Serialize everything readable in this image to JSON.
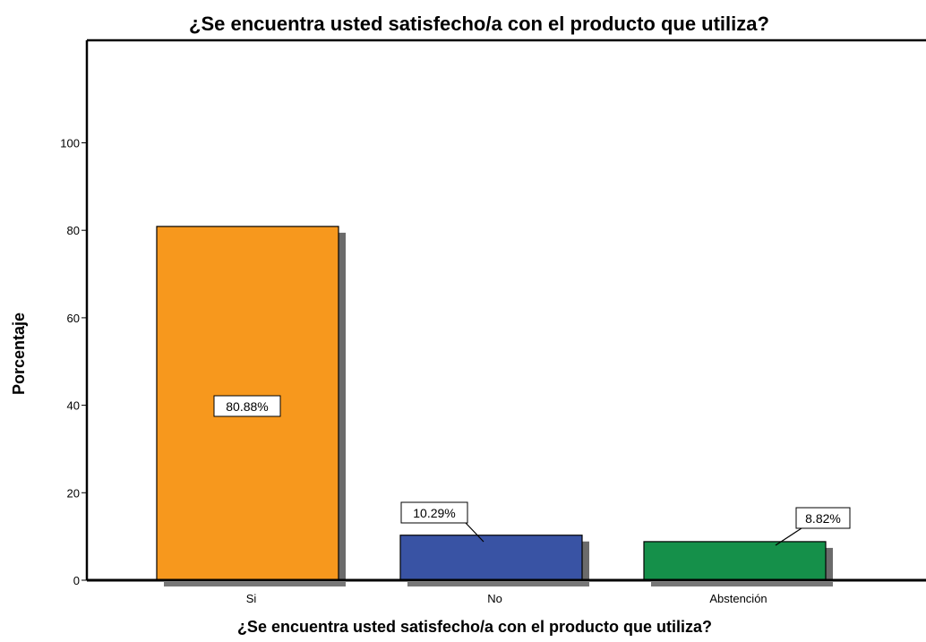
{
  "chart_data": {
    "type": "bar",
    "title": "¿Se encuentra usted satisfecho/a con el producto que utiliza?",
    "xlabel": "¿Se encuentra usted satisfecho/a con el producto que utiliza?",
    "ylabel": "Porcentaje",
    "categories": [
      "Si",
      "No",
      "Abstención"
    ],
    "values": [
      80.88,
      10.29,
      8.82
    ],
    "data_labels": [
      "80.88%",
      "10.29%",
      "8.82%"
    ],
    "colors": [
      "#f7981d",
      "#3953a4",
      "#15904a"
    ],
    "yticks": [
      0,
      20,
      40,
      60,
      80,
      100
    ],
    "ylim": [
      0,
      100
    ],
    "grid": false,
    "legend": "none"
  }
}
